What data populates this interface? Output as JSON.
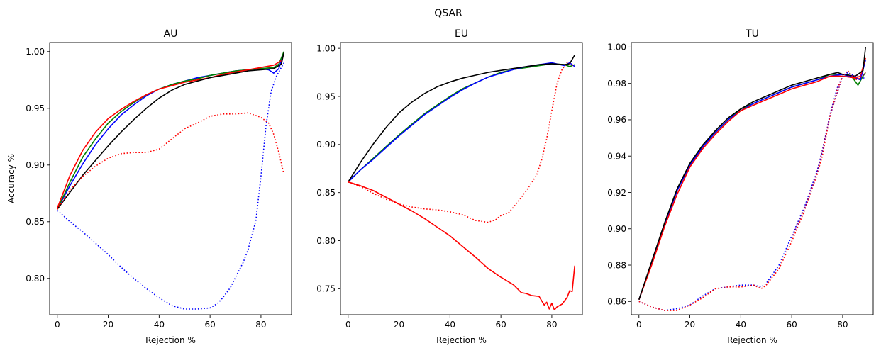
{
  "figure": {
    "suptitle": "QSAR"
  },
  "colors": {
    "green": "#008000",
    "blue": "#0000ff",
    "red": "#ff0000",
    "black": "#000000"
  },
  "chart_data": [
    {
      "type": "line",
      "title": "AU",
      "xlabel": "Rejection %",
      "ylabel": "Accuracy %",
      "xlim": [
        -3,
        92
      ],
      "ylim": [
        0.768,
        1.008
      ],
      "xticks": [
        0,
        20,
        40,
        60,
        80
      ],
      "yticks": [
        0.8,
        0.85,
        0.9,
        0.95,
        1.0
      ],
      "ytick_format": 2,
      "grid": false,
      "series": [
        {
          "color": "blue",
          "style": "solid",
          "x": [
            0,
            5,
            10,
            15,
            20,
            25,
            30,
            35,
            40,
            45,
            50,
            55,
            60,
            65,
            70,
            75,
            80,
            83,
            85,
            87,
            89
          ],
          "y": [
            0.861,
            0.882,
            0.901,
            0.918,
            0.932,
            0.944,
            0.953,
            0.961,
            0.967,
            0.971,
            0.974,
            0.977,
            0.979,
            0.981,
            0.983,
            0.984,
            0.985,
            0.984,
            0.981,
            0.985,
            0.999
          ]
        },
        {
          "color": "green",
          "style": "solid",
          "x": [
            0,
            5,
            10,
            15,
            20,
            25,
            30,
            35,
            40,
            45,
            50,
            55,
            60,
            65,
            70,
            75,
            80,
            85,
            87,
            89
          ],
          "y": [
            0.861,
            0.885,
            0.907,
            0.923,
            0.937,
            0.947,
            0.955,
            0.962,
            0.967,
            0.971,
            0.974,
            0.976,
            0.979,
            0.981,
            0.983,
            0.984,
            0.985,
            0.986,
            0.989,
            1.0
          ]
        },
        {
          "color": "red",
          "style": "solid",
          "x": [
            0,
            5,
            10,
            15,
            20,
            25,
            30,
            35,
            40,
            45,
            50,
            55,
            60,
            65,
            70,
            75,
            80,
            85,
            88
          ],
          "y": [
            0.862,
            0.891,
            0.913,
            0.929,
            0.941,
            0.949,
            0.956,
            0.962,
            0.967,
            0.97,
            0.973,
            0.975,
            0.977,
            0.98,
            0.982,
            0.984,
            0.986,
            0.988,
            0.992
          ]
        },
        {
          "color": "black",
          "style": "solid",
          "x": [
            0,
            5,
            10,
            15,
            20,
            25,
            30,
            35,
            40,
            45,
            50,
            55,
            60,
            65,
            70,
            75,
            80,
            85,
            88,
            89
          ],
          "y": [
            0.861,
            0.876,
            0.891,
            0.904,
            0.917,
            0.929,
            0.94,
            0.95,
            0.959,
            0.966,
            0.971,
            0.974,
            0.977,
            0.979,
            0.981,
            0.983,
            0.984,
            0.985,
            0.989,
            0.999
          ]
        },
        {
          "color": "red",
          "style": "dotted",
          "x": [
            0,
            5,
            10,
            15,
            20,
            25,
            30,
            35,
            40,
            45,
            50,
            55,
            60,
            65,
            70,
            75,
            80,
            83,
            85,
            87,
            89
          ],
          "y": [
            0.861,
            0.878,
            0.89,
            0.899,
            0.906,
            0.91,
            0.911,
            0.911,
            0.914,
            0.923,
            0.932,
            0.937,
            0.943,
            0.945,
            0.945,
            0.946,
            0.942,
            0.937,
            0.927,
            0.911,
            0.892
          ]
        },
        {
          "color": "blue",
          "style": "dotted",
          "x": [
            0,
            5,
            10,
            15,
            20,
            25,
            30,
            35,
            40,
            45,
            50,
            55,
            60,
            63,
            65,
            68,
            70,
            73,
            75,
            78,
            80,
            82,
            84,
            86,
            88,
            89
          ],
          "y": [
            0.86,
            0.85,
            0.841,
            0.831,
            0.821,
            0.81,
            0.8,
            0.791,
            0.783,
            0.776,
            0.773,
            0.773,
            0.774,
            0.778,
            0.783,
            0.792,
            0.801,
            0.814,
            0.826,
            0.851,
            0.89,
            0.935,
            0.965,
            0.978,
            0.986,
            0.99
          ]
        }
      ]
    },
    {
      "type": "line",
      "title": "EU",
      "xlabel": "Rejection %",
      "ylabel": "",
      "xlim": [
        -3,
        92
      ],
      "ylim": [
        0.723,
        1.006
      ],
      "xticks": [
        0,
        20,
        40,
        60,
        80
      ],
      "yticks": [
        0.75,
        0.8,
        0.85,
        0.9,
        0.95,
        1.0
      ],
      "ytick_format": 2,
      "grid": false,
      "series": [
        {
          "color": "green",
          "style": "solid",
          "x": [
            0,
            5,
            10,
            15,
            20,
            25,
            30,
            35,
            40,
            45,
            50,
            55,
            60,
            65,
            70,
            75,
            80,
            85,
            87,
            89
          ],
          "y": [
            0.861,
            0.874,
            0.886,
            0.898,
            0.91,
            0.921,
            0.932,
            0.941,
            0.95,
            0.958,
            0.964,
            0.97,
            0.975,
            0.978,
            0.98,
            0.982,
            0.984,
            0.983,
            0.981,
            0.983
          ]
        },
        {
          "color": "blue",
          "style": "solid",
          "x": [
            0,
            5,
            10,
            15,
            20,
            25,
            30,
            35,
            40,
            45,
            50,
            55,
            60,
            65,
            70,
            75,
            80,
            85,
            87,
            89
          ],
          "y": [
            0.861,
            0.874,
            0.885,
            0.897,
            0.909,
            0.92,
            0.931,
            0.94,
            0.949,
            0.957,
            0.964,
            0.97,
            0.974,
            0.978,
            0.981,
            0.983,
            0.985,
            0.982,
            0.985,
            0.981
          ]
        },
        {
          "color": "black",
          "style": "solid",
          "x": [
            0,
            5,
            10,
            15,
            20,
            25,
            30,
            35,
            40,
            45,
            50,
            55,
            60,
            65,
            70,
            75,
            80,
            85,
            87,
            89
          ],
          "y": [
            0.861,
            0.882,
            0.901,
            0.918,
            0.933,
            0.944,
            0.953,
            0.96,
            0.965,
            0.969,
            0.972,
            0.975,
            0.977,
            0.979,
            0.981,
            0.983,
            0.984,
            0.983,
            0.984,
            0.993
          ]
        },
        {
          "color": "red",
          "style": "solid",
          "x": [
            0,
            5,
            10,
            15,
            20,
            25,
            30,
            35,
            40,
            45,
            50,
            55,
            60,
            65,
            68,
            70,
            72,
            75,
            77,
            78,
            79,
            80,
            81,
            82,
            84,
            86,
            87,
            88,
            89
          ],
          "y": [
            0.861,
            0.857,
            0.852,
            0.845,
            0.838,
            0.831,
            0.823,
            0.814,
            0.805,
            0.794,
            0.783,
            0.771,
            0.762,
            0.754,
            0.746,
            0.745,
            0.743,
            0.742,
            0.733,
            0.736,
            0.729,
            0.735,
            0.728,
            0.731,
            0.734,
            0.741,
            0.748,
            0.747,
            0.774
          ]
        },
        {
          "color": "red",
          "style": "dotted",
          "x": [
            0,
            5,
            10,
            15,
            20,
            25,
            30,
            35,
            40,
            45,
            50,
            55,
            58,
            60,
            63,
            65,
            68,
            70,
            72,
            74,
            76,
            78,
            80,
            82,
            84,
            86,
            88,
            89
          ],
          "y": [
            0.861,
            0.856,
            0.849,
            0.843,
            0.838,
            0.835,
            0.833,
            0.832,
            0.83,
            0.827,
            0.821,
            0.819,
            0.822,
            0.826,
            0.829,
            0.835,
            0.845,
            0.852,
            0.86,
            0.868,
            0.884,
            0.906,
            0.935,
            0.963,
            0.978,
            0.985,
            0.983,
            0.981
          ]
        }
      ]
    },
    {
      "type": "line",
      "title": "TU",
      "xlabel": "Rejection %",
      "ylabel": "",
      "xlim": [
        -3,
        92
      ],
      "ylim": [
        0.8527,
        1.0025
      ],
      "xticks": [
        0,
        20,
        40,
        60,
        80
      ],
      "yticks": [
        0.86,
        0.88,
        0.9,
        0.92,
        0.94,
        0.96,
        0.98,
        1.0
      ],
      "ytick_format": 2,
      "grid": false,
      "series": [
        {
          "color": "green",
          "style": "solid",
          "x": [
            0,
            5,
            10,
            15,
            20,
            25,
            30,
            35,
            40,
            45,
            50,
            55,
            60,
            65,
            70,
            75,
            80,
            82,
            84,
            86,
            88,
            89
          ],
          "y": [
            0.861,
            0.881,
            0.903,
            0.922,
            0.936,
            0.946,
            0.953,
            0.96,
            0.966,
            0.969,
            0.972,
            0.975,
            0.978,
            0.98,
            0.982,
            0.985,
            0.985,
            0.985,
            0.983,
            0.979,
            0.984,
            0.986
          ]
        },
        {
          "color": "blue",
          "style": "solid",
          "x": [
            0,
            5,
            10,
            15,
            20,
            25,
            30,
            35,
            40,
            45,
            50,
            55,
            60,
            65,
            70,
            75,
            80,
            85,
            87,
            89
          ],
          "y": [
            0.861,
            0.881,
            0.902,
            0.921,
            0.935,
            0.945,
            0.953,
            0.96,
            0.965,
            0.969,
            0.972,
            0.975,
            0.978,
            0.98,
            0.982,
            0.984,
            0.985,
            0.983,
            0.982,
            0.993
          ]
        },
        {
          "color": "red",
          "style": "solid",
          "x": [
            0,
            5,
            10,
            15,
            20,
            25,
            30,
            35,
            40,
            45,
            50,
            55,
            60,
            65,
            70,
            75,
            80,
            85,
            87,
            89
          ],
          "y": [
            0.861,
            0.88,
            0.901,
            0.919,
            0.934,
            0.944,
            0.952,
            0.959,
            0.965,
            0.968,
            0.971,
            0.974,
            0.977,
            0.979,
            0.981,
            0.984,
            0.984,
            0.983,
            0.984,
            0.994
          ]
        },
        {
          "color": "black",
          "style": "solid",
          "x": [
            0,
            5,
            10,
            15,
            20,
            25,
            30,
            35,
            40,
            45,
            50,
            55,
            60,
            65,
            70,
            75,
            78,
            80,
            85,
            88,
            89
          ],
          "y": [
            0.861,
            0.882,
            0.903,
            0.922,
            0.936,
            0.946,
            0.954,
            0.961,
            0.966,
            0.97,
            0.973,
            0.976,
            0.979,
            0.981,
            0.983,
            0.985,
            0.986,
            0.985,
            0.984,
            0.987,
            1.0
          ]
        },
        {
          "color": "blue",
          "style": "dotted",
          "x": [
            0,
            5,
            10,
            15,
            20,
            25,
            30,
            35,
            40,
            45,
            48,
            50,
            55,
            60,
            65,
            70,
            72,
            75,
            78,
            80,
            82,
            85,
            87,
            89
          ],
          "y": [
            0.86,
            0.857,
            0.855,
            0.856,
            0.858,
            0.863,
            0.867,
            0.868,
            0.869,
            0.869,
            0.868,
            0.87,
            0.88,
            0.896,
            0.912,
            0.932,
            0.942,
            0.963,
            0.978,
            0.984,
            0.986,
            0.984,
            0.983,
            0.983
          ]
        },
        {
          "color": "red",
          "style": "dotted",
          "x": [
            0,
            5,
            10,
            15,
            20,
            25,
            30,
            35,
            40,
            45,
            48,
            50,
            55,
            60,
            65,
            70,
            72,
            75,
            78,
            80,
            82,
            85,
            87,
            89
          ],
          "y": [
            0.86,
            0.857,
            0.855,
            0.855,
            0.858,
            0.862,
            0.867,
            0.868,
            0.868,
            0.869,
            0.867,
            0.869,
            0.878,
            0.893,
            0.91,
            0.93,
            0.94,
            0.962,
            0.977,
            0.984,
            0.987,
            0.982,
            0.983,
            0.986
          ]
        },
        {
          "color": "purple",
          "style": "dotted",
          "x": [
            60,
            65,
            70,
            75,
            80,
            85,
            89
          ],
          "y": [
            0.895,
            0.911,
            0.931,
            0.962,
            0.984,
            0.984,
            0.985
          ]
        }
      ]
    }
  ]
}
